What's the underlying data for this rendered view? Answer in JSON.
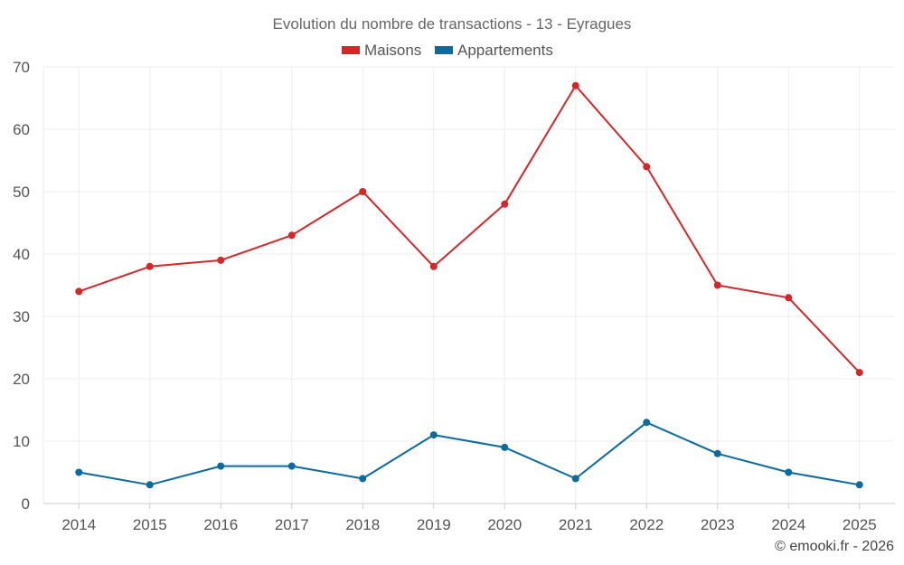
{
  "credit": "© emooki.fr - 2026",
  "chart_data": {
    "type": "line",
    "title": "Evolution du nombre de transactions - 13 - Eyragues",
    "xlabel": "",
    "ylabel": "",
    "categories": [
      "2014",
      "2015",
      "2016",
      "2017",
      "2018",
      "2019",
      "2020",
      "2021",
      "2022",
      "2023",
      "2024",
      "2025"
    ],
    "ylim": [
      0,
      70
    ],
    "yticks": [
      "0",
      "10",
      "20",
      "30",
      "40",
      "50",
      "60",
      "70"
    ],
    "grid": true,
    "legend_position": "top-center",
    "series": [
      {
        "name": "Maisons",
        "color": "#d62728",
        "values": [
          34,
          38,
          39,
          43,
          50,
          38,
          48,
          67,
          54,
          35,
          33,
          21
        ]
      },
      {
        "name": "Appartements",
        "color": "#0b6aa0",
        "values": [
          5,
          3,
          6,
          6,
          4,
          11,
          9,
          4,
          13,
          8,
          5,
          3
        ]
      }
    ]
  }
}
